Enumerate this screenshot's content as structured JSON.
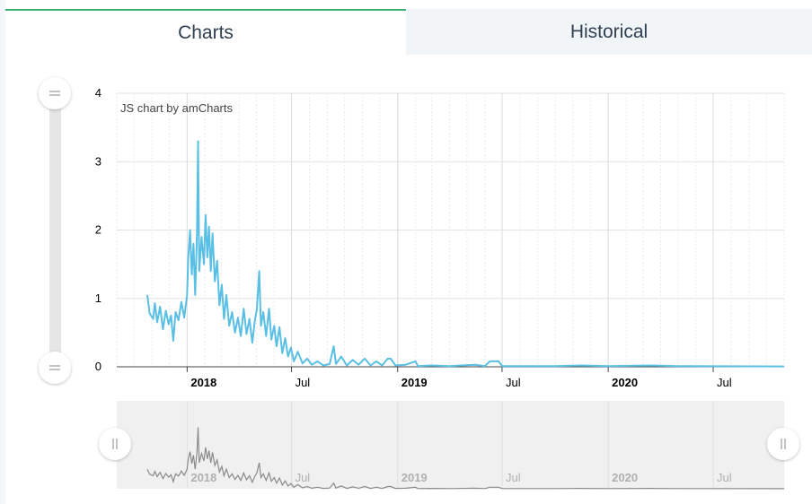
{
  "tabs": [
    {
      "label": "Charts",
      "active": true
    },
    {
      "label": "Historical",
      "active": false
    }
  ],
  "credit": "JS chart by amCharts",
  "colors": {
    "series": "#59bfe4",
    "navigator_series": "#8a8a8a",
    "tab_accent": "#3bb273"
  },
  "icons": {
    "value_scrollbar_top_grip": "equals-grip-icon",
    "value_scrollbar_bottom_grip": "equals-grip-icon",
    "navigator_left_grip": "double-bar-grip-icon",
    "navigator_right_grip": "double-bar-grip-icon"
  },
  "chart_data": {
    "type": "line",
    "title": "",
    "xlabel": "",
    "ylabel": "",
    "ylim": [
      0,
      4
    ],
    "yticks": [
      "0",
      "1",
      "2",
      "3",
      "4"
    ],
    "xlim": [
      "2017-09-01",
      "2020-11-01"
    ],
    "xticks": [
      {
        "date": "2018-01-01",
        "label": "2018",
        "bold": true
      },
      {
        "date": "2018-07-01",
        "label": "Jul",
        "bold": false
      },
      {
        "date": "2019-01-01",
        "label": "2019",
        "bold": true
      },
      {
        "date": "2019-07-01",
        "label": "Jul",
        "bold": false
      },
      {
        "date": "2020-01-01",
        "label": "2020",
        "bold": true
      },
      {
        "date": "2020-07-01",
        "label": "Jul",
        "bold": false
      }
    ],
    "grid": true,
    "legend": "none",
    "series": [
      {
        "points": [
          [
            "2017-10-24",
            1.05
          ],
          [
            "2017-10-28",
            0.78
          ],
          [
            "2017-11-03",
            0.7
          ],
          [
            "2017-11-06",
            0.93
          ],
          [
            "2017-11-10",
            0.65
          ],
          [
            "2017-11-15",
            0.88
          ],
          [
            "2017-11-20",
            0.55
          ],
          [
            "2017-11-25",
            0.82
          ],
          [
            "2017-11-30",
            0.62
          ],
          [
            "2017-12-04",
            0.75
          ],
          [
            "2017-12-08",
            0.38
          ],
          [
            "2017-12-12",
            0.8
          ],
          [
            "2017-12-17",
            0.68
          ],
          [
            "2017-12-22",
            0.95
          ],
          [
            "2017-12-27",
            0.72
          ],
          [
            "2018-01-01",
            1.05
          ],
          [
            "2018-01-03",
            1.6
          ],
          [
            "2018-01-06",
            2.0
          ],
          [
            "2018-01-09",
            1.35
          ],
          [
            "2018-01-12",
            1.8
          ],
          [
            "2018-01-15",
            1.05
          ],
          [
            "2018-01-18",
            1.95
          ],
          [
            "2018-01-20",
            3.3
          ],
          [
            "2018-01-22",
            1.4
          ],
          [
            "2018-01-26",
            1.9
          ],
          [
            "2018-01-30",
            1.5
          ],
          [
            "2018-02-02",
            2.22
          ],
          [
            "2018-02-05",
            1.6
          ],
          [
            "2018-02-08",
            2.05
          ],
          [
            "2018-02-11",
            1.4
          ],
          [
            "2018-02-14",
            1.95
          ],
          [
            "2018-02-18",
            1.25
          ],
          [
            "2018-02-22",
            1.55
          ],
          [
            "2018-02-26",
            0.9
          ],
          [
            "2018-03-02",
            1.2
          ],
          [
            "2018-03-06",
            0.7
          ],
          [
            "2018-03-10",
            1.05
          ],
          [
            "2018-03-15",
            0.6
          ],
          [
            "2018-03-20",
            0.8
          ],
          [
            "2018-03-25",
            0.5
          ],
          [
            "2018-03-30",
            0.72
          ],
          [
            "2018-04-04",
            0.45
          ],
          [
            "2018-04-09",
            0.85
          ],
          [
            "2018-04-14",
            0.48
          ],
          [
            "2018-04-19",
            0.7
          ],
          [
            "2018-04-24",
            0.35
          ],
          [
            "2018-04-28",
            0.65
          ],
          [
            "2018-05-02",
            0.85
          ],
          [
            "2018-05-06",
            1.4
          ],
          [
            "2018-05-09",
            0.6
          ],
          [
            "2018-05-13",
            0.8
          ],
          [
            "2018-05-18",
            0.45
          ],
          [
            "2018-05-23",
            0.85
          ],
          [
            "2018-05-27",
            0.4
          ],
          [
            "2018-06-01",
            0.6
          ],
          [
            "2018-06-05",
            0.3
          ],
          [
            "2018-06-10",
            0.58
          ],
          [
            "2018-06-15",
            0.2
          ],
          [
            "2018-06-20",
            0.42
          ],
          [
            "2018-06-25",
            0.15
          ],
          [
            "2018-06-30",
            0.28
          ],
          [
            "2018-07-05",
            0.08
          ],
          [
            "2018-07-12",
            0.22
          ],
          [
            "2018-07-20",
            0.05
          ],
          [
            "2018-07-28",
            0.12
          ],
          [
            "2018-08-05",
            0.03
          ],
          [
            "2018-08-15",
            0.08
          ],
          [
            "2018-08-25",
            0.02
          ],
          [
            "2018-09-05",
            0.04
          ],
          [
            "2018-09-12",
            0.3
          ],
          [
            "2018-09-16",
            0.04
          ],
          [
            "2018-09-25",
            0.15
          ],
          [
            "2018-10-05",
            0.02
          ],
          [
            "2018-10-15",
            0.1
          ],
          [
            "2018-10-25",
            0.03
          ],
          [
            "2018-11-05",
            0.12
          ],
          [
            "2018-11-15",
            0.02
          ],
          [
            "2018-11-25",
            0.08
          ],
          [
            "2018-12-05",
            0.02
          ],
          [
            "2018-12-15",
            0.12
          ],
          [
            "2018-12-20",
            0.12
          ],
          [
            "2018-12-28",
            0.02
          ],
          [
            "2019-01-15",
            0.03
          ],
          [
            "2019-02-01",
            0.08
          ],
          [
            "2019-02-05",
            0.01
          ],
          [
            "2019-03-01",
            0.02
          ],
          [
            "2019-04-01",
            0.01
          ],
          [
            "2019-05-15",
            0.03
          ],
          [
            "2019-06-01",
            0.01
          ],
          [
            "2019-06-10",
            0.08
          ],
          [
            "2019-06-25",
            0.08
          ],
          [
            "2019-07-01",
            0.01
          ],
          [
            "2019-10-01",
            0.01
          ],
          [
            "2019-11-15",
            0.02
          ],
          [
            "2020-01-01",
            0.01
          ],
          [
            "2020-03-15",
            0.02
          ],
          [
            "2020-05-01",
            0.01
          ],
          [
            "2020-11-01",
            0.005
          ]
        ]
      }
    ]
  }
}
